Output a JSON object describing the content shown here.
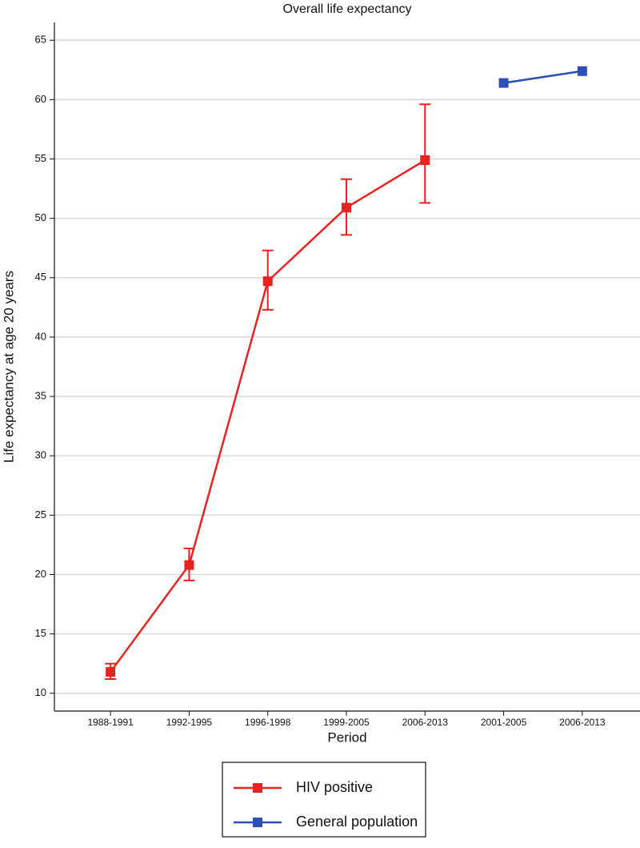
{
  "chart_data": {
    "type": "line",
    "title": "Overall life expectancy",
    "xlabel": "Period",
    "ylabel": "Life expectancy at age 20 years",
    "categories": [
      "1988-1991",
      "1992-1995",
      "1996-1998",
      "1999-2005",
      "2006-2013",
      "2001-2005",
      "2006-2013"
    ],
    "series": [
      {
        "name": "HIV positive",
        "color": "#e8231f",
        "values": [
          11.8,
          20.8,
          44.7,
          50.9,
          54.9,
          null,
          null
        ],
        "lower": [
          11.2,
          19.5,
          42.3,
          48.6,
          51.3,
          null,
          null
        ],
        "upper": [
          12.5,
          22.2,
          47.3,
          53.3,
          59.6,
          null,
          null
        ]
      },
      {
        "name": "General population",
        "color": "#2c4fb8",
        "values": [
          null,
          null,
          null,
          null,
          null,
          61.4,
          62.4
        ]
      }
    ],
    "ylim": [
      8.5,
      66.5
    ],
    "yticks": [
      10,
      15,
      20,
      25,
      30,
      35,
      40,
      45,
      50,
      55,
      60,
      65
    ],
    "grid": true
  }
}
